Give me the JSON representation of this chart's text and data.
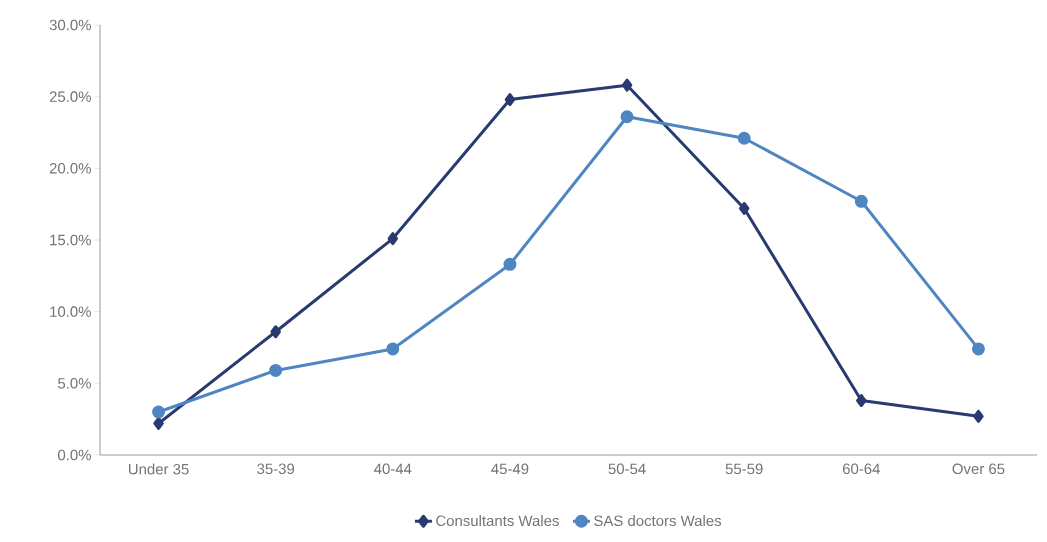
{
  "chart_data": {
    "type": "line",
    "categories": [
      "Under 35",
      "35-39",
      "40-44",
      "45-49",
      "50-54",
      "55-59",
      "60-64",
      "Over 65"
    ],
    "series": [
      {
        "name": "Consultants Wales",
        "color": "#283a70",
        "marker": "diamond",
        "values": [
          2.2,
          8.6,
          15.1,
          24.8,
          25.8,
          17.2,
          3.8,
          2.7
        ]
      },
      {
        "name": "SAS doctors Wales",
        "color": "#4f86c1",
        "marker": "circle",
        "values": [
          3.0,
          5.9,
          7.4,
          13.3,
          23.6,
          22.1,
          17.7,
          7.4
        ]
      }
    ],
    "ylim": [
      0,
      30
    ],
    "yticks": [
      {
        "value": 0,
        "label": "0.0%"
      },
      {
        "value": 5,
        "label": "5.0%"
      },
      {
        "value": 10,
        "label": "10.0%"
      },
      {
        "value": 15,
        "label": "15.0%"
      },
      {
        "value": 20,
        "label": "20.0%"
      },
      {
        "value": 25,
        "label": "25.0%"
      },
      {
        "value": 30,
        "label": "30.0%"
      }
    ],
    "grid": false,
    "legend": "bottom",
    "line_style": "solid"
  }
}
